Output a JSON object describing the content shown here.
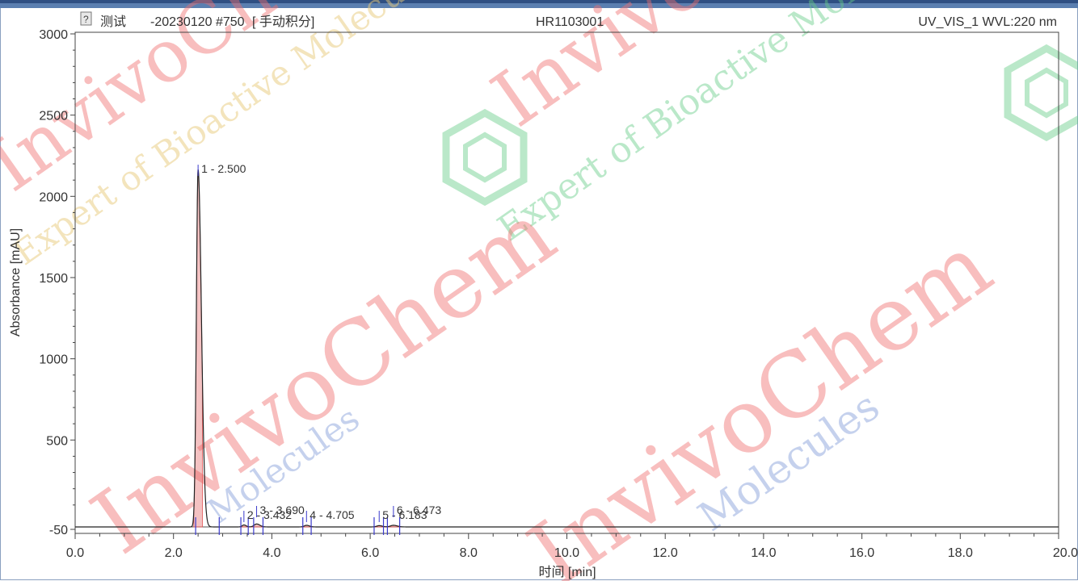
{
  "header": {
    "sample_name": "测试",
    "injection": "-20230120 #750",
    "integration_mode": "[ 手动积分]",
    "sequence": "HR1103001",
    "channel": "UV_VIS_1 WVL:220 nm"
  },
  "colors": {
    "trace": "#222222",
    "baseline": "#555555",
    "marker": "#3a3acc",
    "fill": "#e05050"
  },
  "icons": {
    "header_icon": "question-document-icon",
    "watermark_logo": "hexagon-logo-icon"
  },
  "watermark_texts": {
    "w1": "InvivoChem",
    "w2": "Expert of Bioactive Molecules",
    "w3": "InvivoChem",
    "w4": "Expert of Bioactive Molecules",
    "w5": "InvivoChem",
    "w6": "Molecules",
    "w7": "InvivoChem",
    "w8": "Molecules",
    "w9": "Bioactive Molecules"
  },
  "chart_data": {
    "type": "line",
    "xlabel": "时间 [min]",
    "ylabel": "Absorbance [mAU]",
    "xlim": [
      0.0,
      20.0
    ],
    "ylim": [
      -50,
      3000
    ],
    "x_ticks": [
      "0.0",
      "2.0",
      "4.0",
      "6.0",
      "8.0",
      "10.0",
      "12.0",
      "14.0",
      "16.0",
      "18.0",
      "20.0"
    ],
    "y_ticks": [
      "-50",
      "500",
      "1000",
      "1500",
      "2000",
      "2500",
      "3000"
    ],
    "baseline_value": -35,
    "peaks": [
      {
        "number": 1,
        "rt": 2.5,
        "height": 2200,
        "label": "1 - 2.500"
      },
      {
        "number": 2,
        "rt": 3.432,
        "height": 12,
        "label": "2 - 3.432"
      },
      {
        "number": 3,
        "rt": 3.69,
        "height": 18,
        "label": "3 - 3.690"
      },
      {
        "number": 4,
        "rt": 4.705,
        "height": 10,
        "label": "4 - 4.705"
      },
      {
        "number": 5,
        "rt": 6.183,
        "height": 8,
        "label": "5 - 6.183"
      },
      {
        "number": 6,
        "rt": 6.473,
        "height": 10,
        "label": "6 - 6.473"
      }
    ],
    "integration_boundaries": [
      2.45,
      2.93,
      3.37,
      3.52,
      3.63,
      3.82,
      4.63,
      4.8,
      6.08,
      6.27,
      6.35,
      6.6
    ],
    "grid": false,
    "legend": "none"
  }
}
